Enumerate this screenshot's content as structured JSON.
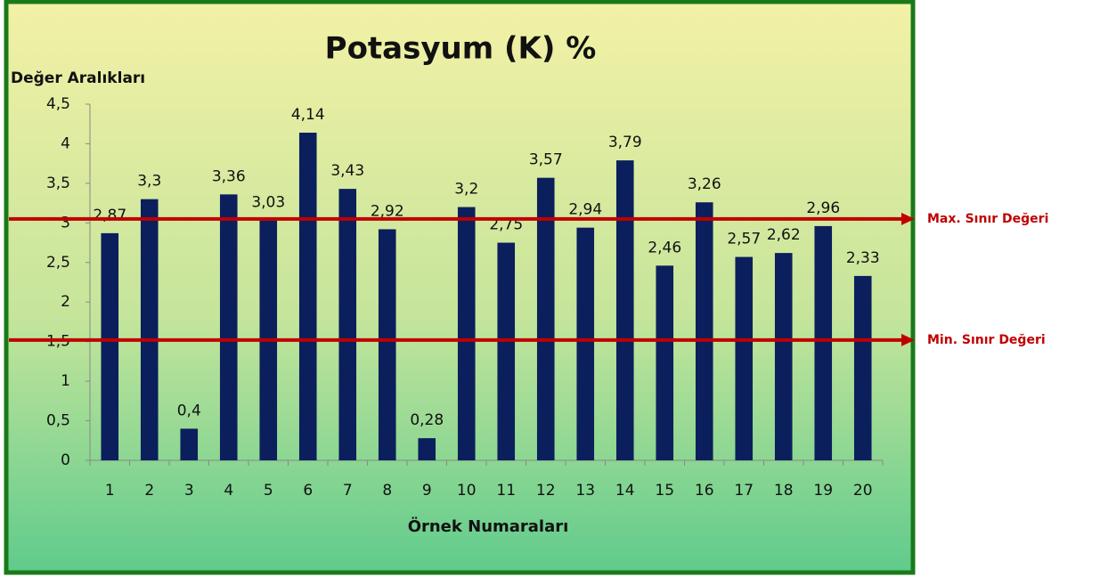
{
  "chart_data": {
    "type": "bar",
    "title": "Potasyum (K) %",
    "y_label": "Değer Aralıkları",
    "x_label": "Örnek Numaraları",
    "categories": [
      "1",
      "2",
      "3",
      "4",
      "5",
      "6",
      "7",
      "8",
      "9",
      "10",
      "11",
      "12",
      "13",
      "14",
      "15",
      "16",
      "17",
      "18",
      "19",
      "20"
    ],
    "values": [
      2.87,
      3.3,
      0.4,
      3.36,
      3.03,
      4.14,
      3.43,
      2.92,
      0.28,
      3.2,
      2.75,
      3.57,
      2.94,
      3.79,
      2.46,
      3.26,
      2.57,
      2.62,
      2.96,
      2.33
    ],
    "value_labels": [
      "2,87",
      "3,3",
      "0,4",
      "3,36",
      "3,03",
      "4,14",
      "3,43",
      "2,92",
      "0,28",
      "3,2",
      "2,75",
      "3,57",
      "2,94",
      "3,79",
      "2,46",
      "3,26",
      "2,57",
      "2,62",
      "2,96",
      "2,33"
    ],
    "color": "#0b1f5c",
    "ylim": [
      0,
      4.5
    ],
    "yticks": [
      0,
      {
        "value": 0.5,
        "label": "0,5"
      },
      1,
      {
        "value": 1.5,
        "label": "1,5"
      },
      2,
      {
        "value": 2.5,
        "label": "2,5"
      },
      3,
      {
        "value": 3.5,
        "label": "3,5"
      },
      4,
      {
        "value": 4.5,
        "label": "4,5"
      }
    ],
    "reference_lines": [
      {
        "label": "Max. Sınır Değeri",
        "value": 3.05,
        "color": "#c00000"
      },
      {
        "label": "Min. Sınır Değeri",
        "value": 1.52,
        "color": "#c00000"
      }
    ]
  }
}
